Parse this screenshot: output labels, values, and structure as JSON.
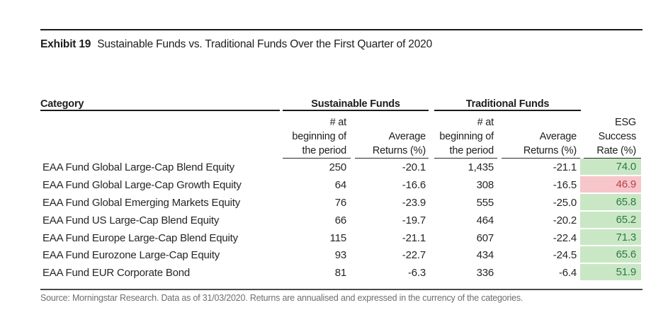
{
  "exhibit": {
    "label": "Exhibit 19",
    "title": "Sustainable Funds vs. Traditional Funds Over the First Quarter of 2020"
  },
  "table": {
    "category_header": "Category",
    "group_headers": {
      "sustainable": "Sustainable Funds",
      "traditional": "Traditional Funds"
    },
    "subheaders": {
      "count_line1": "# at",
      "count_line2": "beginning of",
      "count_line3": "the period",
      "avg_line1": "Average",
      "avg_line2": "Returns (%)",
      "esg_line1": "ESG",
      "esg_line2": "Success",
      "esg_line3": "Rate (%)"
    },
    "rows": [
      {
        "category": "EAA Fund Global Large-Cap Blend Equity",
        "sustainable_count": "250",
        "sustainable_return": "-20.1",
        "traditional_count": "1,435",
        "traditional_return": "-21.1",
        "esg_success_rate": "74.0",
        "esg_status": "positive"
      },
      {
        "category": "EAA Fund Global Large-Cap Growth Equity",
        "sustainable_count": "64",
        "sustainable_return": "-16.6",
        "traditional_count": "308",
        "traditional_return": "-16.5",
        "esg_success_rate": "46.9",
        "esg_status": "negative"
      },
      {
        "category": "EAA Fund Global Emerging Markets Equity",
        "sustainable_count": "76",
        "sustainable_return": "-23.9",
        "traditional_count": "555",
        "traditional_return": "-25.0",
        "esg_success_rate": "65.8",
        "esg_status": "positive"
      },
      {
        "category": "EAA Fund US Large-Cap Blend Equity",
        "sustainable_count": "66",
        "sustainable_return": "-19.7",
        "traditional_count": "464",
        "traditional_return": "-20.2",
        "esg_success_rate": "65.2",
        "esg_status": "positive"
      },
      {
        "category": "EAA Fund Europe Large-Cap Blend Equity",
        "sustainable_count": "115",
        "sustainable_return": "-21.1",
        "traditional_count": "607",
        "traditional_return": "-22.4",
        "esg_success_rate": "71.3",
        "esg_status": "positive"
      },
      {
        "category": "EAA Fund Eurozone Large-Cap Equity",
        "sustainable_count": "93",
        "sustainable_return": "-22.7",
        "traditional_count": "434",
        "traditional_return": "-24.5",
        "esg_success_rate": "65.6",
        "esg_status": "positive"
      },
      {
        "category": "EAA Fund EUR Corporate Bond",
        "sustainable_count": "81",
        "sustainable_return": "-6.3",
        "traditional_count": "336",
        "traditional_return": "-6.4",
        "esg_success_rate": "51.9",
        "esg_status": "positive"
      }
    ]
  },
  "footer": {
    "source": "Source: Morningstar Research. Data as of 31/03/2020. Returns are annualised and expressed in the currency of the categories."
  },
  "colors": {
    "positive_bg": "#cae7c5",
    "positive_text": "#2c7a3f",
    "negative_bg": "#f6c6cb",
    "negative_text": "#bb3e46",
    "rule_color": "#1a1a1a"
  }
}
